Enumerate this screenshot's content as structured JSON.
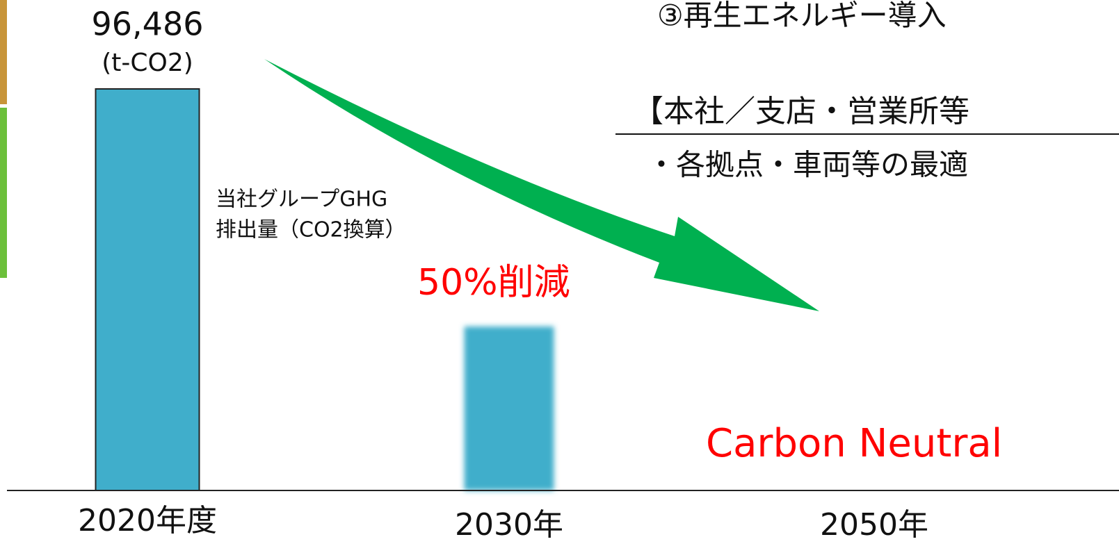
{
  "chart_data": {
    "type": "bar",
    "categories": [
      "2020年度",
      "2030年",
      "2050年"
    ],
    "values": [
      96486,
      39400,
      0
    ],
    "value_labels": [
      "96,486",
      null,
      null
    ],
    "unit": "(t-CO2)",
    "color": "#40aecb",
    "series_label": [
      "当社グループGHG",
      "排出量（CO2換算）"
    ],
    "annotations": [
      "50%削減",
      "Carbon Neutral"
    ],
    "side_text": [
      "③再生エネルギー導入",
      "【本社／支店・営業所等",
      "・各拠点・車両等の最適"
    ]
  }
}
